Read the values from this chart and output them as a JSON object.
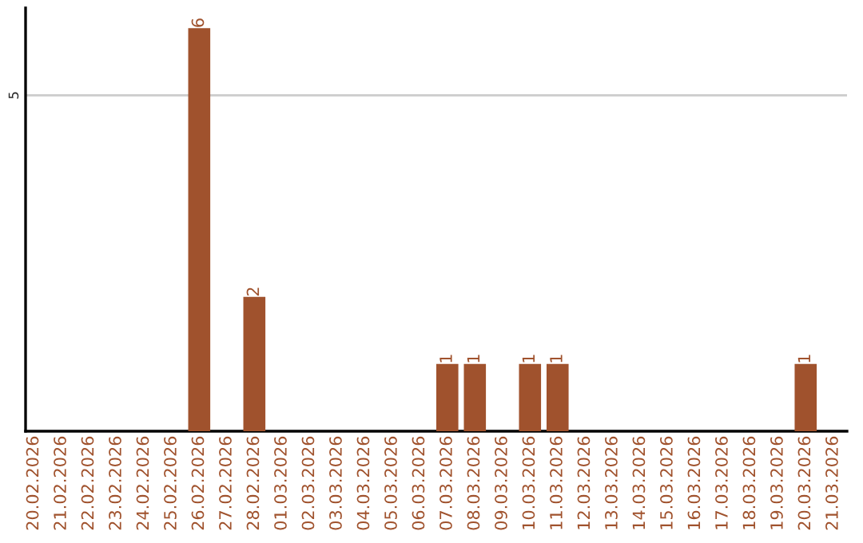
{
  "chart_data": {
    "type": "bar",
    "categories": [
      "20.02.2026",
      "21.02.2026",
      "22.02.2026",
      "23.02.2026",
      "24.02.2026",
      "25.02.2026",
      "26.02.2026",
      "27.02.2026",
      "28.02.2026",
      "01.03.2026",
      "02.03.2026",
      "03.03.2026",
      "04.03.2026",
      "05.03.2026",
      "06.03.2026",
      "07.03.2026",
      "08.03.2026",
      "09.03.2026",
      "10.03.2026",
      "11.03.2026",
      "12.03.2026",
      "13.03.2026",
      "14.03.2026",
      "15.03.2026",
      "16.03.2026",
      "17.03.2026",
      "18.03.2026",
      "19.03.2026",
      "20.03.2026",
      "21.03.2026"
    ],
    "values": [
      0,
      0,
      0,
      0,
      0,
      0,
      6,
      0,
      2,
      0,
      0,
      0,
      0,
      0,
      0,
      1,
      1,
      0,
      1,
      1,
      0,
      0,
      0,
      0,
      0,
      0,
      0,
      0,
      1,
      0
    ],
    "value_labels": [
      null,
      null,
      null,
      null,
      null,
      null,
      "6",
      null,
      "2",
      null,
      null,
      null,
      null,
      null,
      null,
      "1",
      "1",
      null,
      "1",
      "1",
      null,
      null,
      null,
      null,
      null,
      null,
      null,
      null,
      "1",
      null
    ],
    "color": "#a0522d",
    "ylim": [
      0,
      6.3
    ],
    "yticks": [
      5
    ],
    "grid": "y",
    "legend": false
  }
}
